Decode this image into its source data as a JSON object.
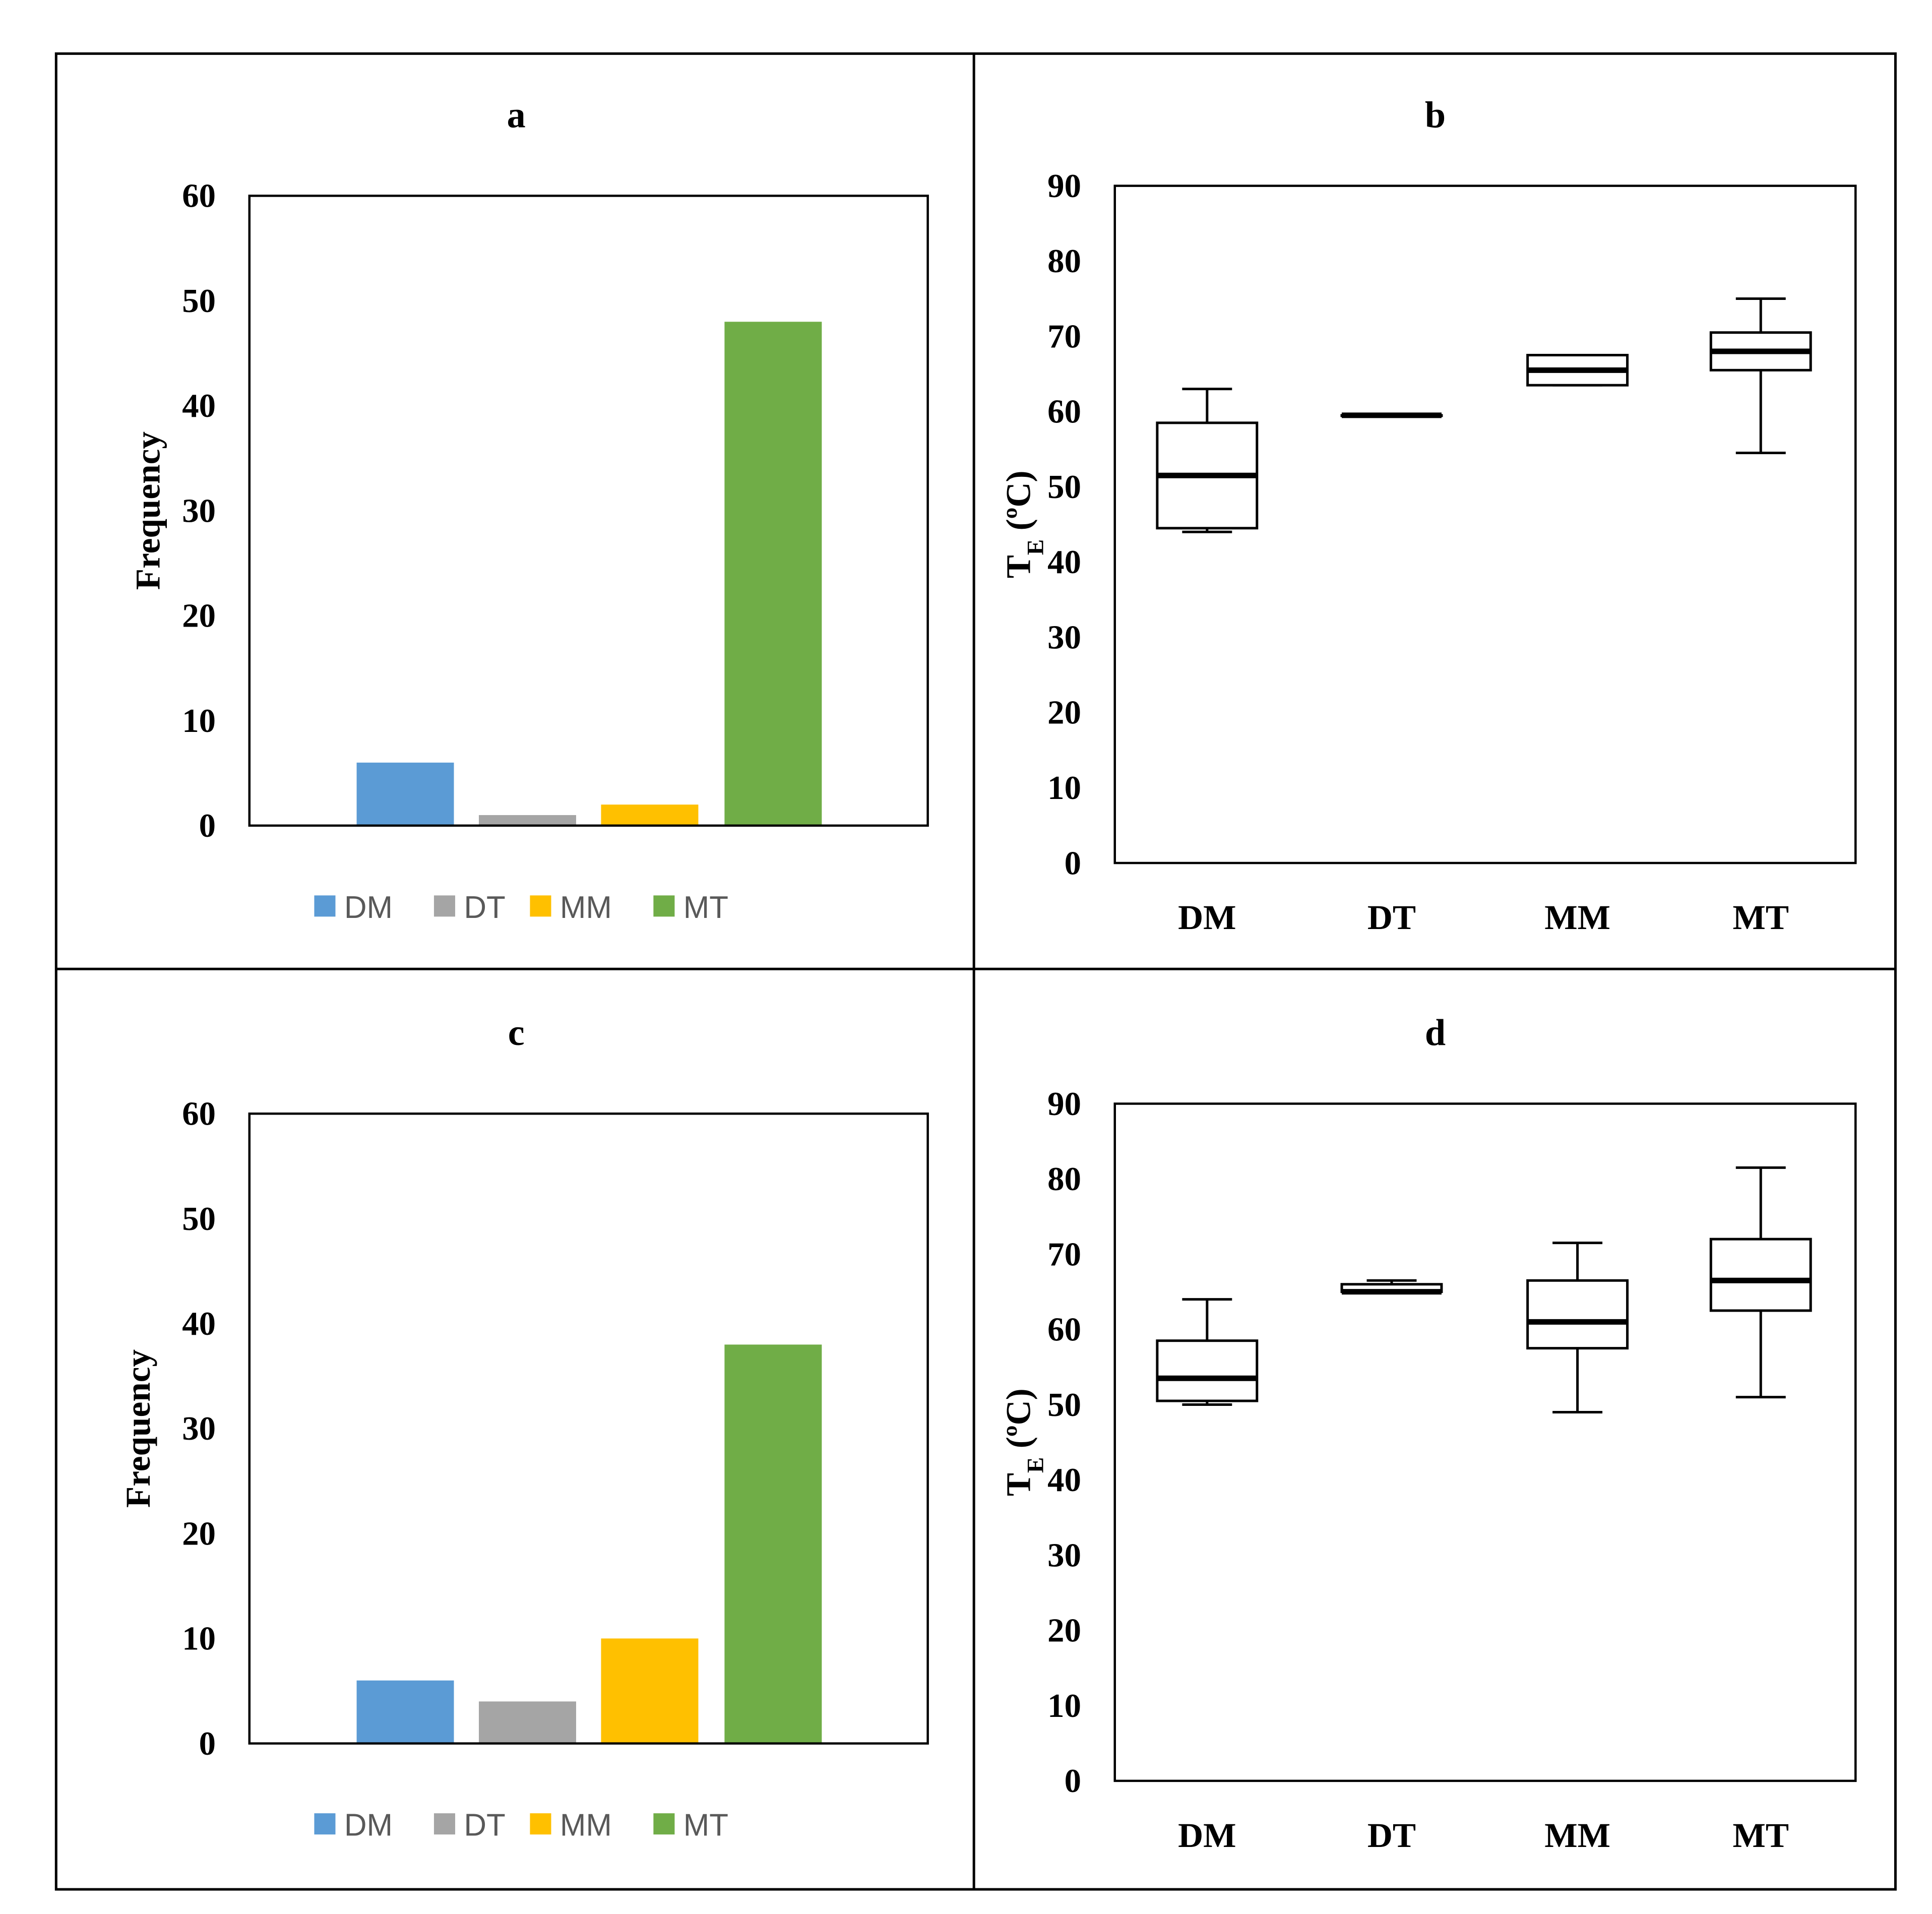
{
  "chart_data": [
    {
      "panel": "a",
      "type": "bar",
      "title": "a",
      "ylabel": "Frequency",
      "xlabel": "",
      "ylim": [
        0,
        60
      ],
      "yticks": [
        "0",
        "10",
        "20",
        "30",
        "40",
        "50",
        "60"
      ],
      "categories": [
        "DM",
        "DT",
        "MM",
        "MT"
      ],
      "values": [
        6,
        1,
        2,
        48
      ],
      "colors": [
        "#5b9bd5",
        "#a5a5a5",
        "#ffc000",
        "#70ad47"
      ],
      "legend": [
        "DM",
        "DT",
        "MM",
        "MT"
      ],
      "legend_position": "bottom"
    },
    {
      "panel": "b",
      "type": "boxplot",
      "title": "b",
      "ylabel": "TE (ºC)",
      "ylabel_main": "T",
      "ylabel_sub": "E",
      "ylabel_rest": " (ºC)",
      "xlabel": "",
      "ylim": [
        0,
        90
      ],
      "yticks": [
        "0",
        "10",
        "20",
        "30",
        "40",
        "50",
        "60",
        "70",
        "80",
        "90"
      ],
      "categories": [
        "DM",
        "DT",
        "MM",
        "MT"
      ],
      "boxes": [
        {
          "min": 44,
          "q1": 44.5,
          "median": 51.5,
          "q3": 58.5,
          "max": 63
        },
        {
          "min": 59.5,
          "q1": 59.5,
          "median": 59.5,
          "q3": 59.5,
          "max": 59.5
        },
        {
          "min": 63.5,
          "q1": 63.5,
          "median": 65.5,
          "q3": 67.5,
          "max": 67.5
        },
        {
          "min": 54.5,
          "q1": 65.5,
          "median": 68,
          "q3": 70.5,
          "max": 75
        }
      ]
    },
    {
      "panel": "c",
      "type": "bar",
      "title": "c",
      "ylabel": "Frequency",
      "xlabel": "",
      "ylim": [
        0,
        60
      ],
      "yticks": [
        "0",
        "10",
        "20",
        "30",
        "40",
        "50",
        "60"
      ],
      "categories": [
        "DM",
        "DT",
        "MM",
        "MT"
      ],
      "values": [
        6,
        4,
        10,
        38
      ],
      "colors": [
        "#5b9bd5",
        "#a5a5a5",
        "#ffc000",
        "#70ad47"
      ],
      "legend": [
        "DM",
        "DT",
        "MM",
        "MT"
      ],
      "legend_position": "bottom"
    },
    {
      "panel": "d",
      "type": "boxplot",
      "title": "d",
      "ylabel": "TE (ºC)",
      "ylabel_main": "T",
      "ylabel_sub": "E",
      "ylabel_rest": " (ºC)",
      "xlabel": "",
      "ylim": [
        0,
        90
      ],
      "yticks": [
        "0",
        "10",
        "20",
        "30",
        "40",
        "50",
        "60",
        "70",
        "80",
        "90"
      ],
      "categories": [
        "DM",
        "DT",
        "MM",
        "MT"
      ],
      "boxes": [
        {
          "min": 50,
          "q1": 50.5,
          "median": 53.5,
          "q3": 58.5,
          "max": 64
        },
        {
          "min": 65,
          "q1": 65,
          "median": 65,
          "q3": 66,
          "max": 66.5
        },
        {
          "min": 49,
          "q1": 57.5,
          "median": 61,
          "q3": 66.5,
          "max": 71.5
        },
        {
          "min": 51,
          "q1": 62.5,
          "median": 66.5,
          "q3": 72,
          "max": 81.5
        }
      ]
    }
  ]
}
